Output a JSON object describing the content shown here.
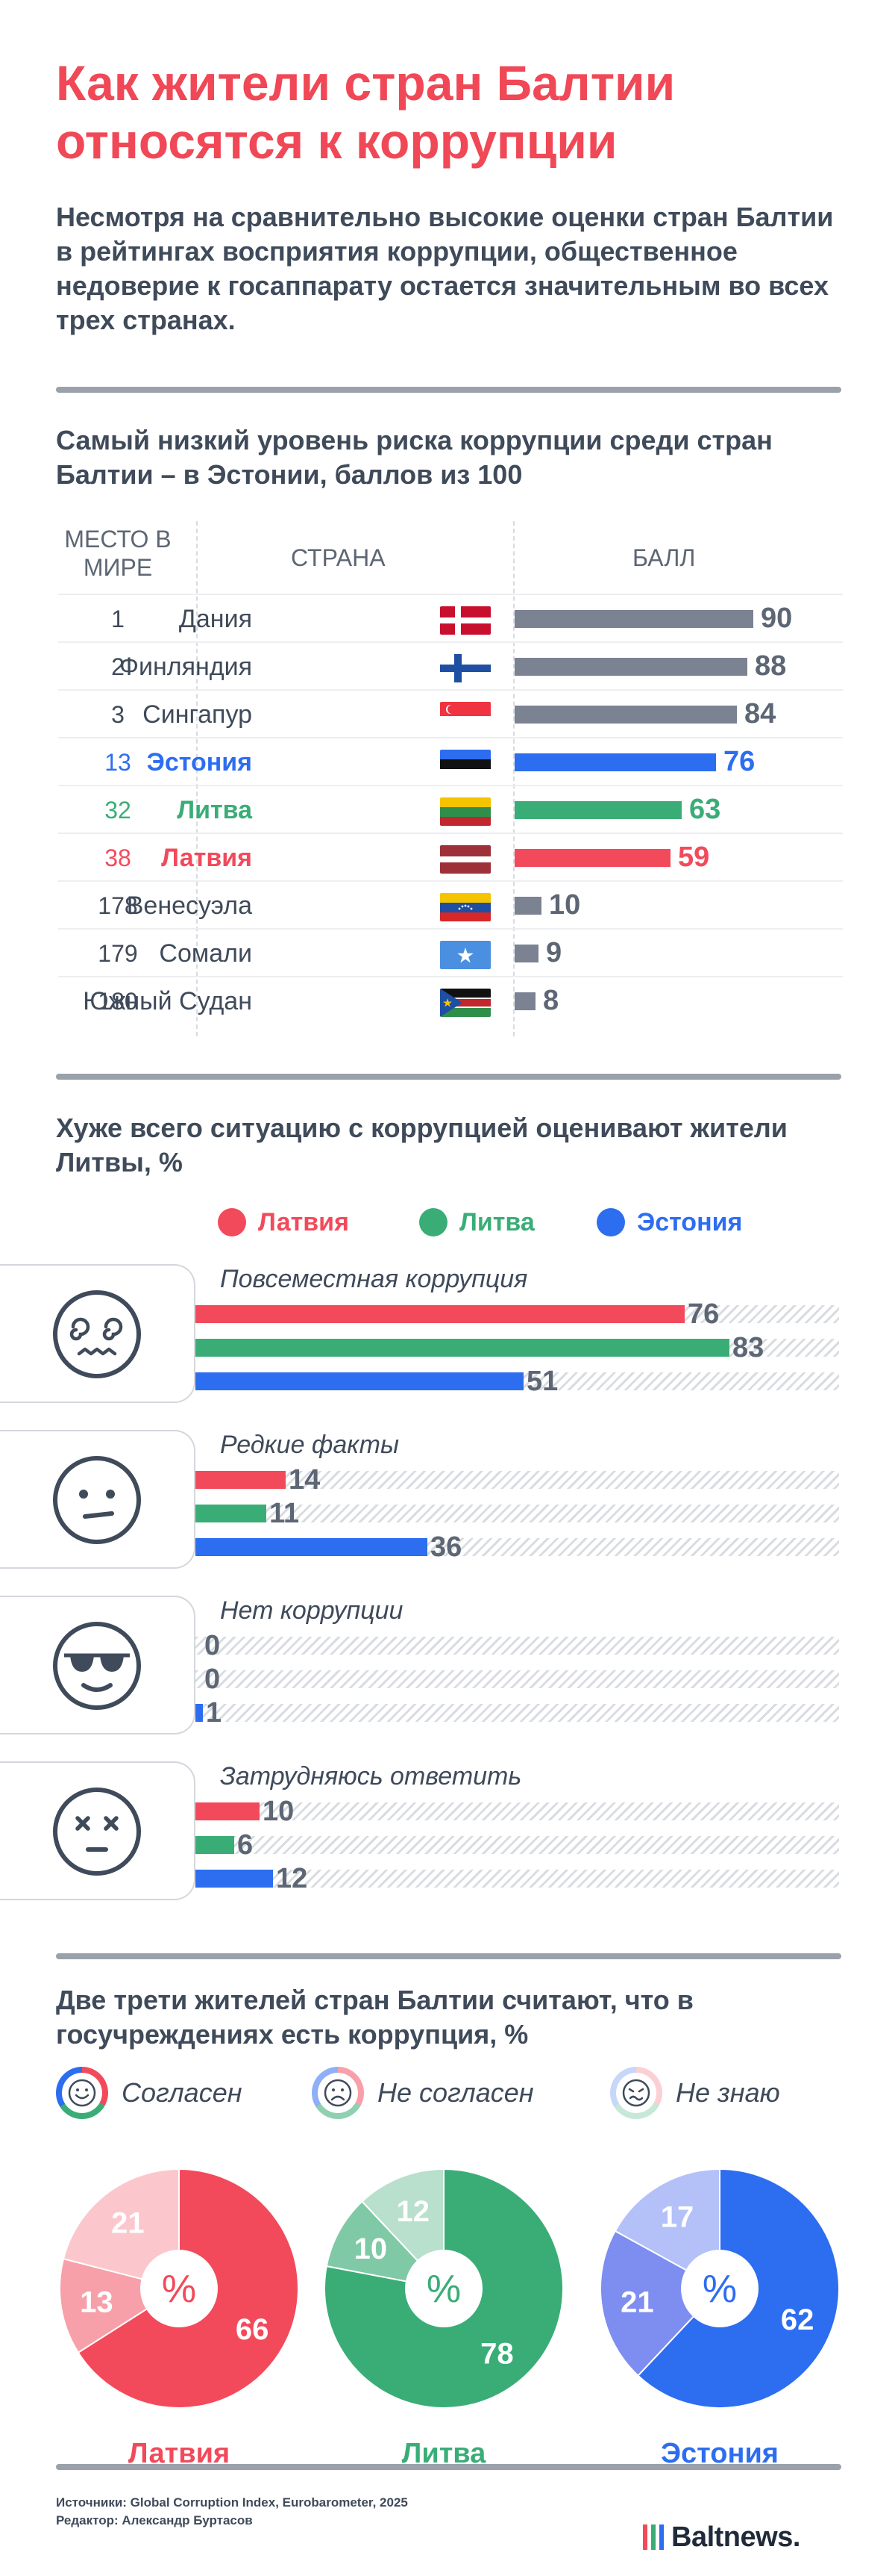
{
  "title": "Как жители стран Балтии относятся к коррупции",
  "intro": "Несмотря на сравнительно высокие оценки стран Балтии в рейтингах восприятия коррупции, общественное недоверие к госаппарату остается значительным во всех трех странах.",
  "colors": {
    "latvia": "#f24a5b",
    "lithuania": "#3aad77",
    "estonia": "#2d6df0",
    "gray_bar": "#7b8291",
    "text": "#3f4a5a",
    "title": "#f04856"
  },
  "chart_data": [
    {
      "type": "bar",
      "title": "Самый низкий уровень риска коррупции среди стран Балтии – в Эстонии, баллов из 100",
      "columns": {
        "rank": "МЕСТО В МИРЕ",
        "country": "СТРАНА",
        "score": "БАЛЛ"
      },
      "categories": [
        "Дания",
        "Финляндия",
        "Сингапур",
        "Эстония",
        "Литва",
        "Латвия",
        "Венесуэла",
        "Сомали",
        "Южный Судан"
      ],
      "ranks": [
        "1",
        "2",
        "3",
        "13",
        "32",
        "38",
        "178",
        "179",
        "180"
      ],
      "values": [
        90,
        88,
        84,
        76,
        63,
        59,
        10,
        9,
        8
      ],
      "highlight": [
        "gray",
        "gray",
        "gray",
        "estonia",
        "lithuania",
        "latvia",
        "gray",
        "gray",
        "gray"
      ],
      "flags": [
        "denmark",
        "finland",
        "singapore",
        "estonia",
        "lithuania",
        "latvia",
        "venezuela",
        "somalia",
        "south-sudan"
      ],
      "xlim": [
        0,
        100
      ]
    },
    {
      "type": "bar",
      "title": "Хуже всего ситуацию с коррупцией оценивают жители Литвы, %",
      "legend": [
        "Латвия",
        "Литва",
        "Эстония"
      ],
      "groups": [
        {
          "label": "Повсеместная коррупция",
          "icon": "dizzy-face-icon",
          "values": [
            76,
            83,
            51
          ]
        },
        {
          "label": "Редкие факты",
          "icon": "neutral-face-icon",
          "values": [
            14,
            11,
            36
          ]
        },
        {
          "label": "Нет коррупции",
          "icon": "sunglasses-face-icon",
          "values": [
            0,
            0,
            1
          ]
        },
        {
          "label": "Затрудняюсь ответить",
          "icon": "x-eyes-face-icon",
          "values": [
            10,
            6,
            12
          ]
        }
      ],
      "xlim": [
        0,
        100
      ]
    },
    {
      "type": "pie",
      "title": "Две трети жителей стран Балтии считают, что в госучреждениях есть коррупция, %",
      "answers": [
        "Согласен",
        "Не согласен",
        "Не знаю"
      ],
      "center_label": "%",
      "pies": [
        {
          "country": "Латвия",
          "values": [
            66,
            13,
            21
          ]
        },
        {
          "country": "Литва",
          "values": [
            78,
            10,
            12
          ]
        },
        {
          "country": "Эстония",
          "values": [
            62,
            21,
            17
          ]
        }
      ]
    }
  ],
  "footer": {
    "sources": "Источники: Global Corruption Index, Eurobarometer, 2025",
    "editor": "Редактор: Александр Буртасов",
    "logo": "Baltnews."
  }
}
